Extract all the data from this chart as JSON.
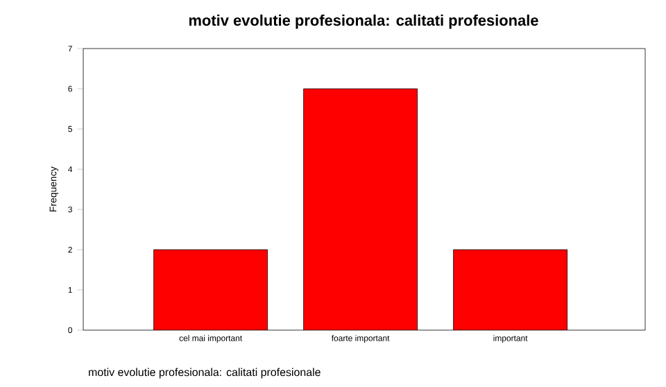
{
  "chart_data": {
    "type": "bar",
    "title": "motiv evolutie profesionala: calitati profesionale",
    "xlabel": "motiv evolutie profesionala: calitati profesionale",
    "ylabel": "Frequency",
    "categories": [
      "cel mai important",
      "foarte important",
      "important"
    ],
    "values": [
      2,
      6,
      2
    ],
    "color": "#ff0000",
    "ylim": [
      0,
      7
    ],
    "yticks": [
      0,
      1,
      2,
      3,
      4,
      5,
      6,
      7
    ],
    "grid": false
  }
}
